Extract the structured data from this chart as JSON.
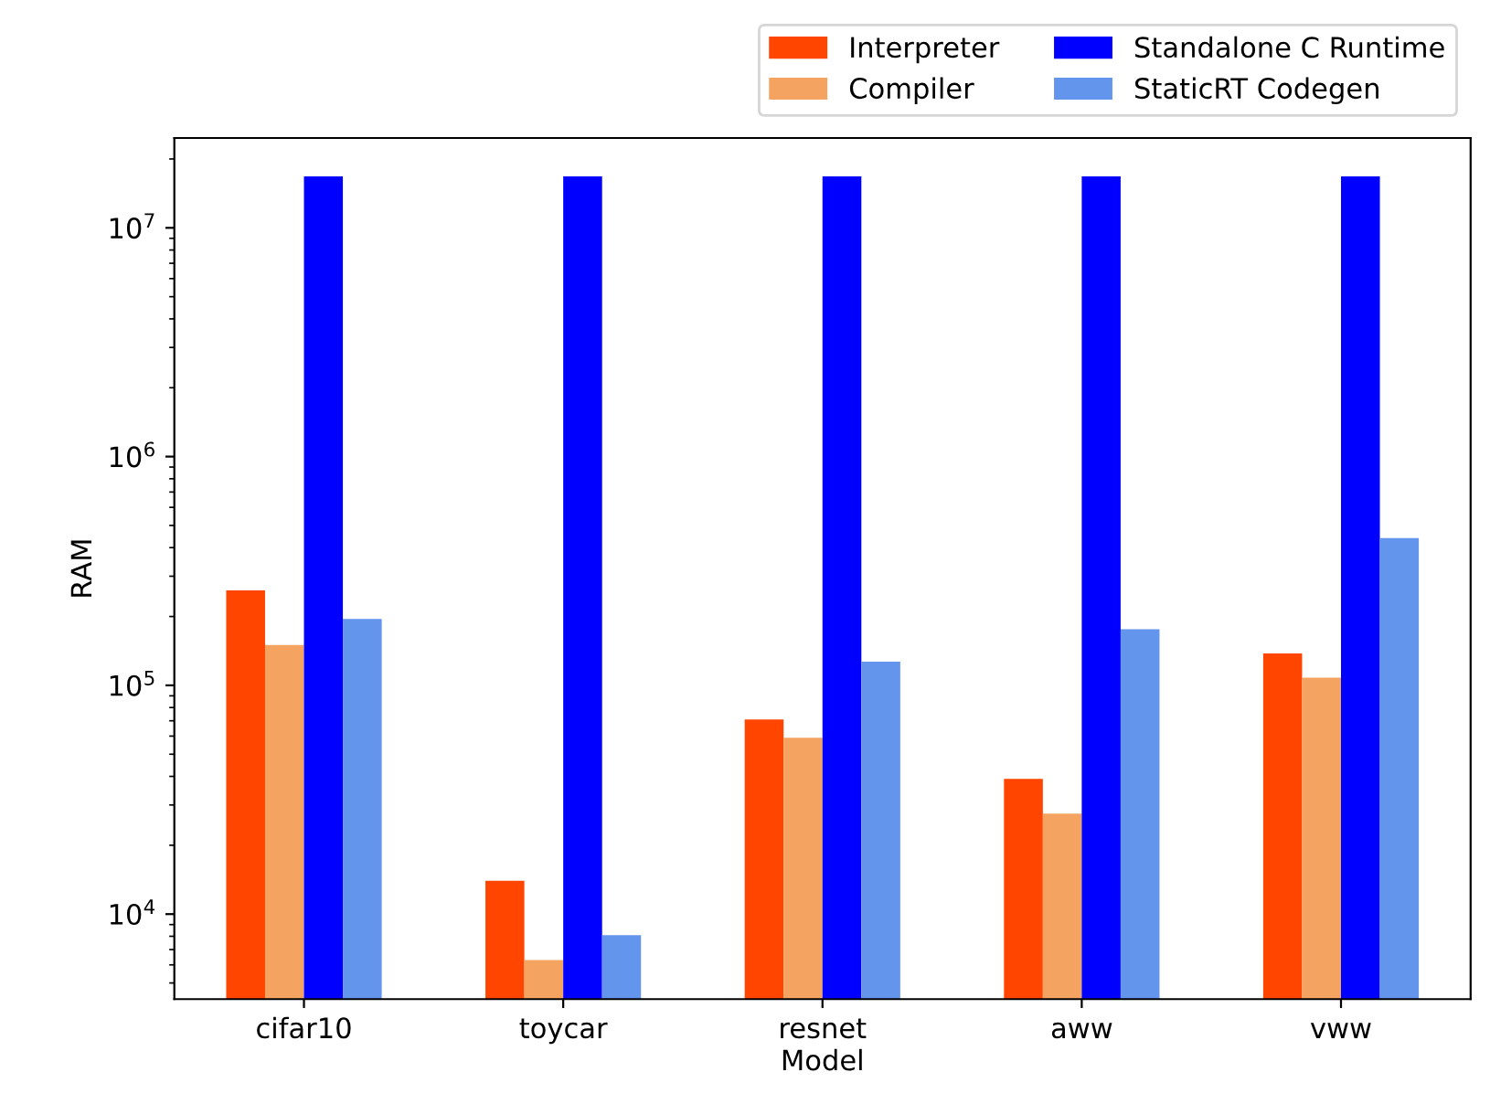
{
  "chart_data": {
    "type": "bar",
    "xlabel": "Model",
    "ylabel": "RAM",
    "categories": [
      "cifar10",
      "toycar",
      "resnet",
      "aww",
      "vww"
    ],
    "series": [
      {
        "name": "Interpreter",
        "color": "#ff4500",
        "values": [
          260000,
          14000,
          71000,
          39000,
          138000
        ]
      },
      {
        "name": "Compiler",
        "color": "#f4a460",
        "values": [
          150000,
          6300,
          59000,
          27500,
          108000
        ]
      },
      {
        "name": "Standalone C Runtime",
        "color": "#0000ff",
        "values": [
          16800000,
          16800000,
          16800000,
          16800000,
          16800000
        ]
      },
      {
        "name": "StaticRT Codegen",
        "color": "#6495ed",
        "values": [
          195000,
          8100,
          127000,
          176000,
          440000
        ]
      }
    ],
    "log": "y",
    "ylim": [
      4250,
      24700000
    ],
    "yticks": [
      {
        "value": 10000,
        "label": "10$^{4}$"
      },
      {
        "value": 100000,
        "label": "10$^{5}$"
      },
      {
        "value": 1000000,
        "label": "10$^{6}$"
      },
      {
        "value": 10000000,
        "label": "10$^{7}$"
      }
    ],
    "legend": "top right",
    "grid": false
  }
}
